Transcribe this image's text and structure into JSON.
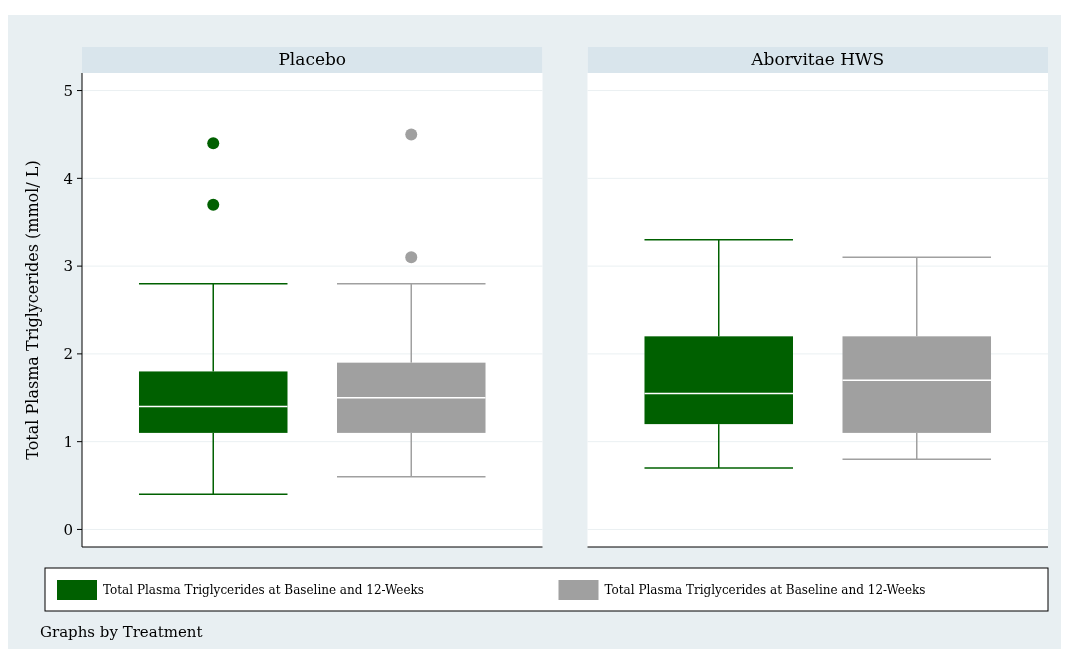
{
  "chart_data": {
    "type": "box",
    "ylabel": "Total Plasma Triglycerides (mmol/ L)",
    "categories": [
      "Placebo",
      "Aborvitae HWS"
    ],
    "ylim": [
      -0.2,
      5.2
    ],
    "yticks": [
      0,
      1,
      2,
      3,
      4,
      5
    ],
    "grid": "y",
    "legend": "bottom",
    "annotations": [
      "Graphs by Treatment"
    ],
    "series": [
      {
        "name": "Total Plasma Triglycerides at Baseline and 12-Weeks",
        "color": "#006000",
        "boxes": [
          {
            "low": 0.4,
            "q1": 1.1,
            "median": 1.4,
            "q3": 1.8,
            "high": 2.8,
            "outliers": [
              3.7,
              4.4
            ]
          },
          {
            "low": 0.7,
            "q1": 1.2,
            "median": 1.55,
            "q3": 2.2,
            "high": 3.3
          }
        ]
      },
      {
        "name": "Total Plasma Triglycerides at Baseline and 12-Weeks",
        "color": "#a0a0a0",
        "boxes": [
          {
            "low": 0.6,
            "q1": 1.1,
            "median": 1.5,
            "q3": 1.9,
            "high": 2.8,
            "outliers": [
              3.1,
              4.5
            ]
          },
          {
            "low": 0.8,
            "q1": 1.1,
            "median": 1.7,
            "q3": 2.2,
            "high": 3.1
          }
        ]
      }
    ]
  }
}
